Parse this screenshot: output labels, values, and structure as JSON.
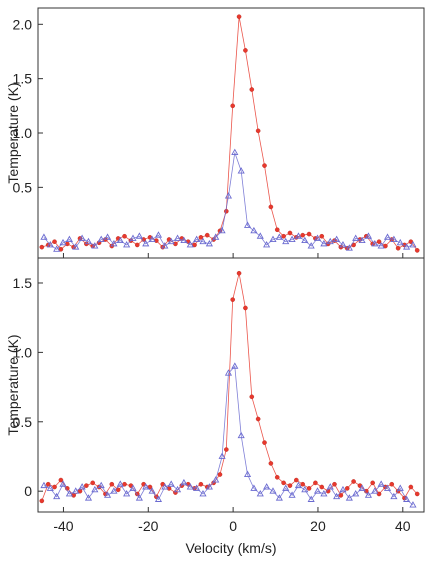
{
  "chart_data": [
    {
      "type": "line",
      "panel": "top",
      "ylabel": "Temperature (K)",
      "xlabel": "",
      "xlim": [
        -46,
        45
      ],
      "ylim": [
        -0.15,
        2.15
      ],
      "yticks": [
        0.5,
        1.0,
        1.5,
        2.0
      ],
      "ytick_labels": [
        "0.5",
        "1.0",
        "1.5",
        "2.0"
      ],
      "xticks": [
        -40,
        -20,
        0,
        20,
        40
      ],
      "xtick_labels": [],
      "grid": false,
      "colors": {
        "red_series": "#e8382d",
        "blue_series": "#6a6ad0"
      },
      "series": [
        {
          "marker": "circle",
          "color": "#e8382d",
          "x": [
            -45.1,
            -43.6,
            -42.1,
            -40.6,
            -39.1,
            -37.6,
            -36.1,
            -34.6,
            -33.1,
            -31.6,
            -30.1,
            -28.6,
            -27.1,
            -25.6,
            -24.1,
            -22.6,
            -21.1,
            -19.6,
            -18.1,
            -16.6,
            -15.1,
            -13.6,
            -12.1,
            -10.6,
            -9.1,
            -7.6,
            -6.1,
            -4.6,
            -3.1,
            -1.6,
            -0.1,
            1.4,
            2.9,
            4.4,
            5.9,
            7.4,
            8.9,
            10.4,
            11.9,
            13.4,
            14.9,
            16.4,
            17.9,
            19.4,
            20.9,
            22.4,
            23.9,
            25.4,
            26.9,
            28.4,
            29.9,
            31.4,
            32.9,
            34.4,
            35.9,
            37.4,
            38.9,
            40.4,
            41.9,
            43.4
          ],
          "y": [
            -0.05,
            -0.03,
            0.0,
            -0.07,
            -0.02,
            -0.05,
            0.03,
            -0.02,
            -0.04,
            -0.01,
            0.02,
            -0.04,
            0.03,
            0.05,
            0.01,
            -0.03,
            0.02,
            0.04,
            0.01,
            -0.05,
            0.02,
            -0.02,
            0.03,
            0.0,
            -0.03,
            0.04,
            0.06,
            0.02,
            0.1,
            0.28,
            1.25,
            2.07,
            1.76,
            1.4,
            1.02,
            0.7,
            0.32,
            0.11,
            0.05,
            0.08,
            0.04,
            0.06,
            0.07,
            0.03,
            0.05,
            -0.02,
            0.01,
            -0.05,
            -0.06,
            -0.03,
            0.02,
            0.05,
            -0.02,
            0.0,
            -0.04,
            0.02,
            -0.06,
            -0.03,
            0.0,
            -0.08
          ]
        },
        {
          "marker": "triangle",
          "color": "#6a6ad0",
          "x": [
            -44.6,
            -43.1,
            -41.6,
            -40.1,
            -38.6,
            -37.1,
            -35.6,
            -34.1,
            -32.6,
            -31.1,
            -29.6,
            -28.1,
            -26.6,
            -25.1,
            -23.6,
            -22.1,
            -20.6,
            -19.1,
            -17.6,
            -16.1,
            -14.6,
            -13.1,
            -11.6,
            -10.1,
            -8.6,
            -7.1,
            -5.6,
            -4.1,
            -2.6,
            -1.1,
            0.4,
            1.9,
            3.4,
            4.9,
            6.4,
            7.9,
            9.4,
            10.9,
            12.4,
            13.9,
            15.4,
            16.9,
            18.4,
            19.9,
            21.4,
            22.9,
            24.4,
            25.9,
            27.4,
            28.9,
            30.4,
            31.9,
            33.4,
            34.9,
            36.4,
            37.9,
            39.4,
            40.9,
            42.4
          ],
          "y": [
            0.04,
            -0.03,
            -0.07,
            -0.01,
            0.02,
            -0.05,
            0.03,
            0.0,
            -0.04,
            0.02,
            0.04,
            -0.02,
            0.01,
            -0.03,
            0.03,
            0.05,
            -0.02,
            0.02,
            0.06,
            -0.04,
            0.0,
            0.03,
            0.01,
            -0.03,
            0.02,
            0.0,
            -0.02,
            0.04,
            0.1,
            0.42,
            0.82,
            0.65,
            0.15,
            0.1,
            0.05,
            -0.03,
            0.02,
            0.04,
            0.0,
            0.02,
            0.05,
            0.01,
            -0.04,
            0.03,
            -0.02,
            0.0,
            0.02,
            -0.03,
            -0.06,
            0.03,
            0.01,
            0.05,
            -0.02,
            -0.04,
            0.04,
            0.02,
            -0.01,
            -0.05,
            -0.03
          ]
        }
      ]
    },
    {
      "type": "line",
      "panel": "bottom",
      "ylabel": "Temperature (K)",
      "xlabel": "Velocity (km/s)",
      "xlim": [
        -46,
        45
      ],
      "ylim": [
        -0.15,
        1.68
      ],
      "yticks": [
        0,
        0.5,
        1.0,
        1.5
      ],
      "ytick_labels": [
        "0",
        "0.5",
        "1.0",
        "1.5"
      ],
      "xticks": [
        -40,
        -20,
        0,
        20,
        40
      ],
      "xtick_labels": [
        "-40",
        "-20",
        "0",
        "20",
        "40"
      ],
      "grid": false,
      "colors": {
        "red_series": "#e8382d",
        "blue_series": "#6a6ad0"
      },
      "series": [
        {
          "marker": "circle",
          "color": "#e8382d",
          "x": [
            -45.1,
            -43.6,
            -42.1,
            -40.6,
            -39.1,
            -37.6,
            -36.1,
            -34.6,
            -33.1,
            -31.6,
            -30.1,
            -28.6,
            -27.1,
            -25.6,
            -24.1,
            -22.6,
            -21.1,
            -19.6,
            -18.1,
            -16.6,
            -15.1,
            -13.6,
            -12.1,
            -10.6,
            -9.1,
            -7.6,
            -6.1,
            -4.6,
            -3.1,
            -1.6,
            -0.1,
            1.4,
            2.9,
            4.4,
            5.9,
            7.4,
            8.9,
            10.4,
            11.9,
            13.4,
            14.9,
            16.4,
            17.9,
            19.4,
            20.9,
            22.4,
            23.9,
            25.4,
            26.9,
            28.4,
            29.9,
            31.4,
            32.9,
            34.4,
            35.9,
            37.4,
            38.9,
            40.4,
            41.9,
            43.4
          ],
          "y": [
            -0.07,
            0.05,
            0.03,
            0.08,
            0.02,
            -0.03,
            0.0,
            0.04,
            0.06,
            0.03,
            -0.02,
            0.05,
            0.01,
            0.05,
            0.04,
            -0.02,
            0.05,
            0.03,
            -0.04,
            0.05,
            0.02,
            -0.01,
            0.04,
            0.05,
            0.02,
            0.05,
            0.03,
            0.06,
            0.12,
            0.3,
            1.38,
            1.57,
            1.32,
            0.68,
            0.52,
            0.35,
            0.2,
            0.1,
            0.06,
            0.04,
            0.08,
            0.05,
            0.02,
            0.06,
            0.03,
            0.0,
            0.05,
            -0.03,
            0.02,
            0.07,
            0.04,
            0.0,
            0.06,
            -0.02,
            0.03,
            0.05,
            0.0,
            -0.05,
            0.03,
            -0.02
          ]
        },
        {
          "marker": "triangle",
          "color": "#6a6ad0",
          "x": [
            -44.6,
            -43.1,
            -41.6,
            -40.1,
            -38.6,
            -37.1,
            -35.6,
            -34.1,
            -32.6,
            -31.1,
            -29.6,
            -28.1,
            -26.6,
            -25.1,
            -23.6,
            -22.1,
            -20.6,
            -19.1,
            -17.6,
            -16.1,
            -14.6,
            -13.1,
            -11.6,
            -10.1,
            -8.6,
            -7.1,
            -5.6,
            -4.1,
            -2.6,
            -1.1,
            0.4,
            1.9,
            3.4,
            4.9,
            6.4,
            7.9,
            9.4,
            10.9,
            12.4,
            13.9,
            15.4,
            16.9,
            18.4,
            19.9,
            21.4,
            22.9,
            24.4,
            25.9,
            27.4,
            28.9,
            30.4,
            31.9,
            33.4,
            34.9,
            36.4,
            37.9,
            39.4,
            40.9,
            42.4
          ],
          "y": [
            0.04,
            0.02,
            -0.04,
            0.05,
            -0.02,
            0.0,
            0.03,
            -0.05,
            0.01,
            0.04,
            -0.03,
            0.0,
            0.05,
            -0.02,
            0.02,
            -0.05,
            0.03,
            0.0,
            -0.06,
            0.03,
            0.05,
            0.01,
            0.06,
            0.03,
            0.02,
            -0.02,
            0.03,
            0.08,
            0.25,
            0.85,
            0.9,
            0.4,
            0.12,
            0.02,
            -0.02,
            0.03,
            0.0,
            -0.05,
            0.02,
            -0.03,
            0.04,
            0.01,
            -0.06,
            0.0,
            -0.02,
            0.03,
            -0.04,
            0.01,
            -0.05,
            -0.02,
            0.02,
            -0.03,
            0.0,
            0.05,
            0.02,
            -0.04,
            0.02,
            -0.06,
            -0.1
          ]
        }
      ]
    }
  ]
}
